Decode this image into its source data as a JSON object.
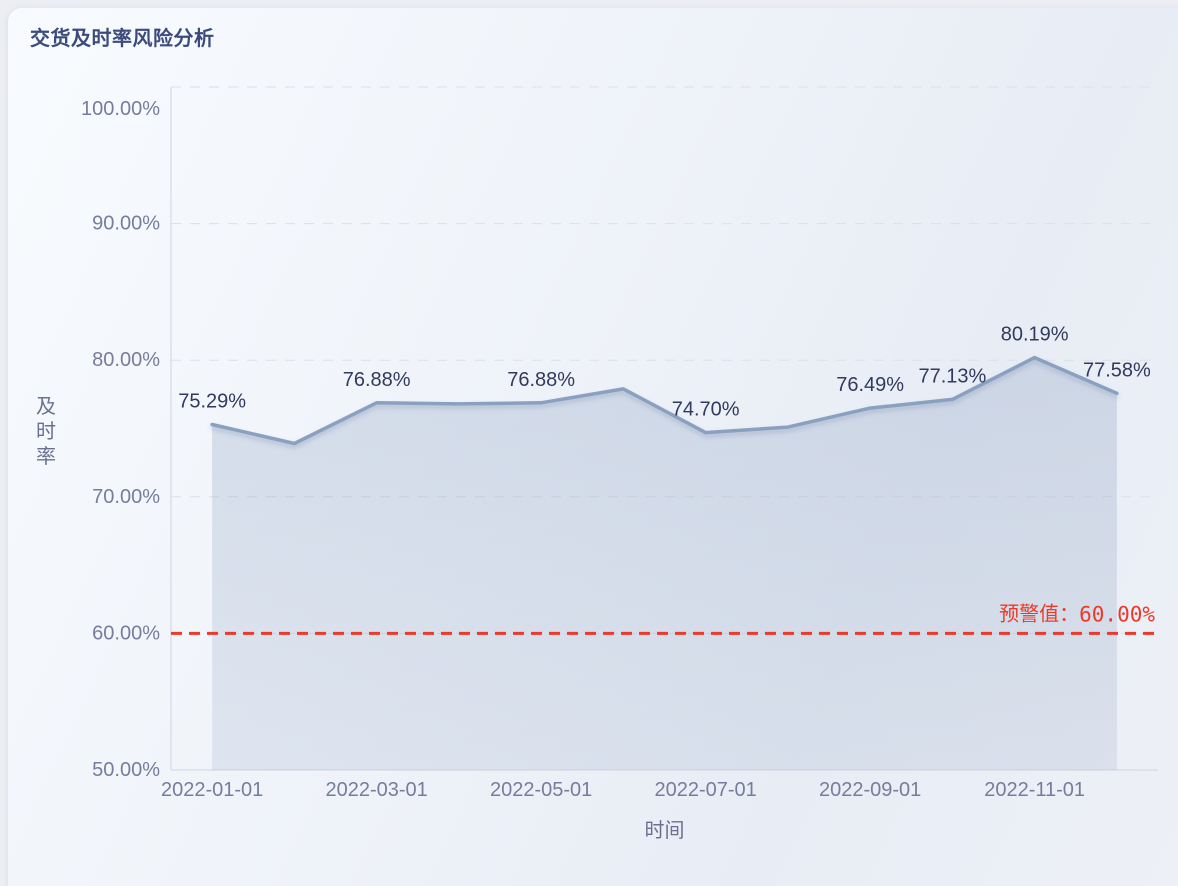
{
  "header": {
    "title": "交货及时率风险分析"
  },
  "chart_data": {
    "type": "area",
    "title": "交货及时率风险分析",
    "xlabel": "时间",
    "ylabel": "及时率",
    "x": [
      "2022-01-01",
      "2022-02-01",
      "2022-03-01",
      "2022-04-01",
      "2022-05-01",
      "2022-06-01",
      "2022-07-01",
      "2022-08-01",
      "2022-09-01",
      "2022-10-01",
      "2022-11-01",
      "2022-12-01"
    ],
    "series": [
      {
        "name": "及时率",
        "values": [
          75.29,
          73.9,
          76.88,
          76.8,
          76.88,
          77.9,
          74.7,
          75.1,
          76.49,
          77.13,
          80.19,
          77.58
        ]
      }
    ],
    "point_labels": [
      "75.29%",
      null,
      "76.88%",
      null,
      "76.88%",
      null,
      "74.70%",
      null,
      "76.49%",
      "77.13%",
      "80.19%",
      "77.58%"
    ],
    "x_axis": {
      "tick_indices": [
        0,
        2,
        4,
        6,
        8,
        10
      ],
      "tick_labels": [
        "2022-01-01",
        "2022-03-01",
        "2022-05-01",
        "2022-07-01",
        "2022-09-01",
        "2022-11-01"
      ]
    },
    "y_axis": {
      "tick_values": [
        50,
        60,
        70,
        80,
        90,
        100
      ],
      "tick_labels": [
        "50.00%",
        "60.00%",
        "70.00%",
        "80.00%",
        "90.00%",
        "100.00%"
      ]
    },
    "ylim": [
      50,
      100
    ],
    "grid": "horizontal-dashed",
    "legend": "none",
    "warning_line": {
      "value": 60,
      "text": "预警值：",
      "value_text": "60.00%"
    },
    "colors": {
      "title": "#3c4b7c",
      "line": "#8aa0c0",
      "area_top": "rgba(138,158,191,0.30)",
      "area_bottom": "rgba(138,158,191,0.18)",
      "data_label": "#323a5e",
      "tick_label": "#767d9c",
      "axis_title": "#6a7190",
      "grid_line": "#dbdfe8",
      "axis_line": "#cfd4de",
      "warning": "#ee3928"
    }
  }
}
